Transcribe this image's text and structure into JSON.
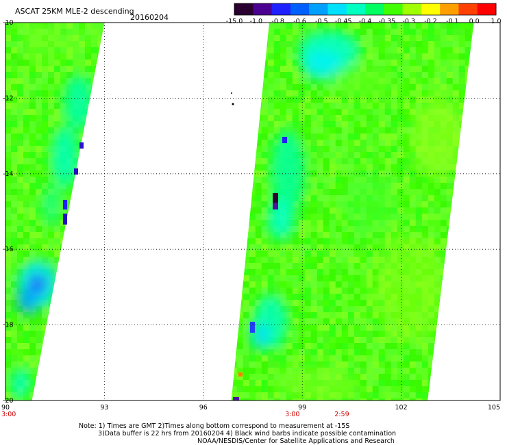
{
  "header": {
    "title": "ASCAT 25KM MLE-2 descending",
    "date": "20160204"
  },
  "colorbar": {
    "colors": [
      "#2a0030",
      "#4a0090",
      "#2020ff",
      "#0060ff",
      "#00a0ff",
      "#00e0ff",
      "#00ffc0",
      "#00ff60",
      "#40ff00",
      "#a0ff00",
      "#ffff00",
      "#ffa000",
      "#ff4000",
      "#ff0000"
    ],
    "labels": [
      "-15.0",
      "-1.0",
      "-0.8",
      "-0.6",
      "-0.5",
      "-0.45",
      "-0.4",
      "-0.35",
      "-0.3",
      "-0.2",
      "-0.1",
      "0.0",
      "1.0"
    ]
  },
  "map": {
    "lon_range": [
      90,
      105
    ],
    "lat_range": [
      -10,
      -20
    ],
    "lon_ticks": [
      {
        "value": 90,
        "label": "90"
      },
      {
        "value": 93,
        "label": "93"
      },
      {
        "value": 96,
        "label": "96"
      },
      {
        "value": 99,
        "label": "99"
      },
      {
        "value": 102,
        "label": "102"
      },
      {
        "value": 105,
        "label": "105"
      }
    ],
    "lat_ticks": [
      {
        "value": -10,
        "label": "-10"
      },
      {
        "value": -12,
        "label": "-12"
      },
      {
        "value": -14,
        "label": "-14"
      },
      {
        "value": -16,
        "label": "-16"
      },
      {
        "value": -18,
        "label": "-18"
      },
      {
        "value": -20,
        "label": "-20"
      }
    ],
    "grid": "dotted",
    "swaths": [
      {
        "name": "swath-west",
        "west_top": 90.0,
        "east_top": 93.0,
        "west_bottom": 90.0,
        "east_bottom": 90.8
      },
      {
        "name": "swath-east",
        "west_top": 98.0,
        "east_top": 104.2,
        "west_bottom": 96.85,
        "east_bottom": 102.8
      }
    ],
    "pass_times": [
      {
        "lon": 90.0,
        "label": "3:00"
      },
      {
        "lon": 98.7,
        "label": "3:00"
      },
      {
        "lon": 100.2,
        "label": "2:59"
      }
    ],
    "time_color": "#cc0000"
  },
  "notes": [
    "Note: 1) Times are GMT 2)Times along bottom correspond to measurement at -15S",
    "3)Data buffer is 22 hrs from 20160204 4) Black wind barbs indicate possible contamination",
    "NOAA/NESDIS/Center for Satellite Applications and Research"
  ]
}
